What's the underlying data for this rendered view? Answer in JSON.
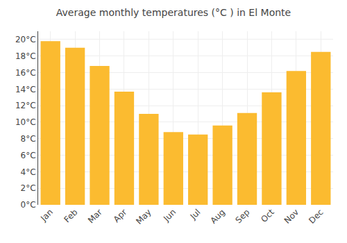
{
  "chart_data": {
    "type": "bar",
    "title": "Average monthly temperatures (°C ) in El Monte",
    "categories": [
      "Jan",
      "Feb",
      "Mar",
      "Apr",
      "May",
      "Jun",
      "Jul",
      "Aug",
      "Sep",
      "Oct",
      "Nov",
      "Dec"
    ],
    "values": [
      19.8,
      19.0,
      16.8,
      13.7,
      11.0,
      8.8,
      8.5,
      9.6,
      11.1,
      13.6,
      16.2,
      18.5
    ],
    "color": "#FBBB30",
    "ylim": [
      0,
      21
    ],
    "yticks": [
      {
        "value": 0,
        "label": "0°C"
      },
      {
        "value": 2,
        "label": "2°C"
      },
      {
        "value": 4,
        "label": "4°C"
      },
      {
        "value": 6,
        "label": "6°C"
      },
      {
        "value": 8,
        "label": "8°C"
      },
      {
        "value": 10,
        "label": "10°C"
      },
      {
        "value": 12,
        "label": "12°C"
      },
      {
        "value": 14,
        "label": "14°C"
      },
      {
        "value": 16,
        "label": "16°C"
      },
      {
        "value": 18,
        "label": "18°C"
      },
      {
        "value": 20,
        "label": "20°C"
      }
    ],
    "grid": true
  }
}
